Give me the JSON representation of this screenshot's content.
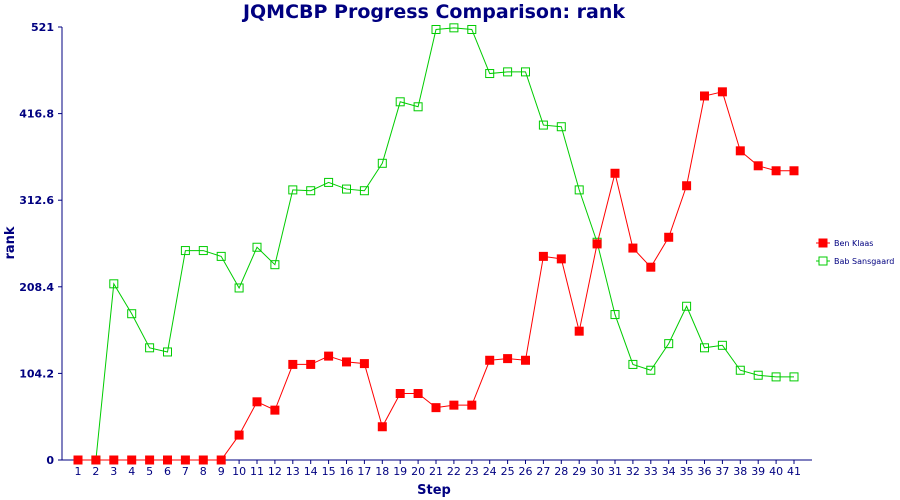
{
  "chart_data": {
    "type": "line",
    "title": "JQMCBP Progress Comparison: rank",
    "xlabel": "Step",
    "ylabel": "rank",
    "x": [
      1,
      2,
      3,
      4,
      5,
      6,
      7,
      8,
      9,
      10,
      11,
      12,
      13,
      14,
      15,
      16,
      17,
      18,
      19,
      20,
      21,
      22,
      23,
      24,
      25,
      26,
      27,
      28,
      29,
      30,
      31,
      32,
      33,
      34,
      35,
      36,
      37,
      38,
      39,
      40,
      41
    ],
    "yticks": [
      "0",
      "104.2",
      "208.4",
      "312.6",
      "416.8",
      "521"
    ],
    "ylim": [
      0,
      521
    ],
    "grid": false,
    "legend_position": "right",
    "series": [
      {
        "name": "Ben Klaas",
        "color": "#ff0000",
        "marker": "filled-square",
        "values": [
          0,
          0,
          0,
          0,
          0,
          0,
          0,
          0,
          0,
          30,
          70,
          60,
          115,
          115,
          125,
          118,
          116,
          40,
          80,
          80,
          63,
          66,
          66,
          120,
          122,
          120,
          245,
          242,
          155,
          260,
          345,
          255,
          232,
          268,
          330,
          438,
          443,
          372,
          354,
          348,
          348
        ]
      },
      {
        "name": "Bab Sansgaard",
        "color": "#00cc00",
        "marker": "open-square",
        "values": [
          0,
          0,
          212,
          176,
          135,
          130,
          252,
          252,
          245,
          207,
          256,
          235,
          325,
          324,
          334,
          326,
          324,
          357,
          431,
          425,
          518,
          520,
          518,
          465,
          467,
          467,
          403,
          401,
          325,
          262,
          175,
          115,
          108,
          140,
          185,
          135,
          138,
          108,
          102,
          100,
          100
        ]
      }
    ]
  }
}
